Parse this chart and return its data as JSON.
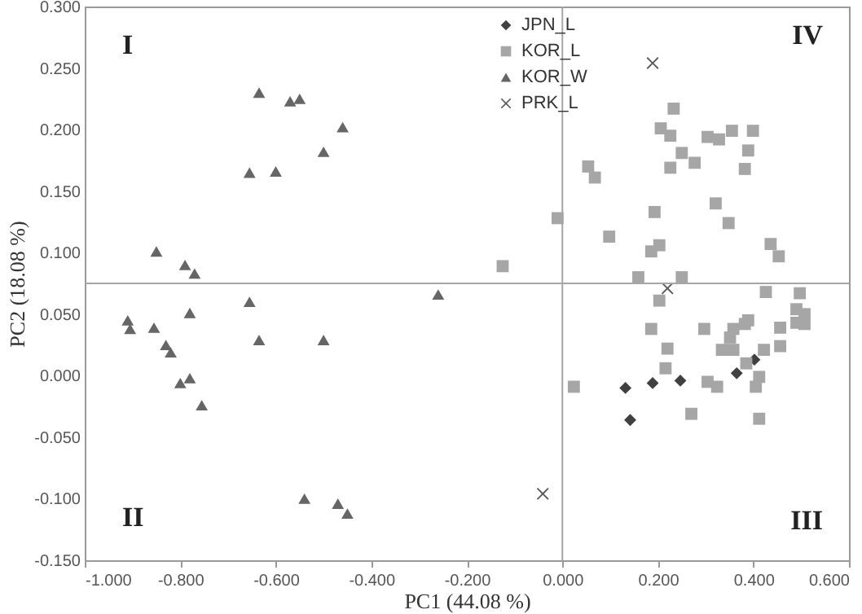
{
  "chart_data": {
    "type": "scatter",
    "xlabel": "PC1 (44.08 %)",
    "ylabel": "PC2 (18.08 %)",
    "xlim": [
      -1.0,
      0.6
    ],
    "ylim": [
      -0.15,
      0.3
    ],
    "xticks": [
      {
        "value": -1.0,
        "label": "-1.000"
      },
      {
        "value": -0.8,
        "label": "-0.800"
      },
      {
        "value": -0.6,
        "label": "-0.600"
      },
      {
        "value": -0.4,
        "label": "-0.400"
      },
      {
        "value": -0.2,
        "label": "-0.200"
      },
      {
        "value": 0,
        "label": "0.000"
      },
      {
        "value": 0.2,
        "label": "0.200"
      },
      {
        "value": 0.4,
        "label": "0.400"
      },
      {
        "value": 0.6,
        "label": "0.600"
      }
    ],
    "yticks": [
      {
        "value": -0.15,
        "label": "-0.150"
      },
      {
        "value": -0.1,
        "label": "-0.100"
      },
      {
        "value": -0.05,
        "label": "-0.050"
      },
      {
        "value": 0,
        "label": "0.000"
      },
      {
        "value": 0.05,
        "label": "0.050"
      },
      {
        "value": 0.1,
        "label": "0.100"
      },
      {
        "value": 0.15,
        "label": "0.150"
      },
      {
        "value": 0.2,
        "label": "0.200"
      },
      {
        "value": 0.25,
        "label": "0.250"
      },
      {
        "value": 0.3,
        "label": "0.300"
      }
    ],
    "grid": false,
    "legend": "top",
    "ref_lines": [
      {
        "axis": "x",
        "value": 0,
        "color": "#a6a6a6"
      },
      {
        "axis": "y",
        "value": 0.075,
        "color": "#a6a6a6"
      }
    ],
    "annotations": [
      "I",
      "II",
      "III",
      "IV"
    ],
    "series": [
      {
        "name": "JPN_L",
        "color": "#404040",
        "marker": "diamond",
        "x": [
          0.132,
          0.142,
          0.189,
          0.247,
          0.365,
          0.402
        ],
        "values": [
          -0.01,
          -0.036,
          -0.006,
          -0.004,
          0.002,
          0.013
        ]
      },
      {
        "name": "KOR_L",
        "color": "#a6a6a6",
        "marker": "square",
        "x": [
          -0.125,
          -0.01,
          0.054,
          0.068,
          0.098,
          0.159,
          0.193,
          0.186,
          0.203,
          0.203,
          0.206,
          0.226,
          0.233,
          0.226,
          0.25,
          0.277,
          0.25,
          0.304,
          0.328,
          0.355,
          0.399,
          0.389,
          0.382,
          0.321,
          0.348,
          0.436,
          0.453,
          0.426,
          0.497,
          0.49,
          0.507,
          0.49,
          0.507,
          0.456,
          0.456,
          0.422,
          0.389,
          0.382,
          0.358,
          0.351,
          0.334,
          0.358,
          0.385,
          0.412,
          0.405,
          0.412,
          0.27,
          0.304,
          0.324,
          0.297,
          0.22,
          0.216,
          0.186,
          0.024
        ],
        "values": [
          0.089,
          0.128,
          0.17,
          0.161,
          0.113,
          0.08,
          0.133,
          0.101,
          0.106,
          0.061,
          0.201,
          0.195,
          0.217,
          0.169,
          0.181,
          0.173,
          0.08,
          0.194,
          0.192,
          0.199,
          0.199,
          0.183,
          0.168,
          0.14,
          0.124,
          0.107,
          0.097,
          0.068,
          0.067,
          0.054,
          0.05,
          0.043,
          0.042,
          0.039,
          0.024,
          0.021,
          0.045,
          0.042,
          0.038,
          0.031,
          0.021,
          0.021,
          0.01,
          -0.001,
          -0.009,
          -0.035,
          -0.031,
          -0.005,
          -0.009,
          0.038,
          0.022,
          0.006,
          0.038,
          -0.009
        ]
      },
      {
        "name": "KOR_W",
        "color": "#666666",
        "marker": "triangle",
        "x": [
          -0.635,
          -0.57,
          -0.55,
          -0.46,
          -0.5,
          -0.655,
          -0.6,
          -0.85,
          -0.79,
          -0.77,
          -0.26,
          -0.655,
          -0.91,
          -0.905,
          -0.78,
          -0.855,
          -0.83,
          -0.82,
          -0.635,
          -0.5,
          -0.8,
          -0.78,
          -0.755,
          -0.54,
          -0.47,
          -0.45
        ],
        "values": [
          0.23,
          0.223,
          0.225,
          0.202,
          0.182,
          0.165,
          0.166,
          0.101,
          0.09,
          0.083,
          0.066,
          0.06,
          0.045,
          0.038,
          0.051,
          0.039,
          0.025,
          0.019,
          0.029,
          0.029,
          -0.006,
          -0.002,
          -0.024,
          -0.1,
          -0.104,
          -0.112
        ]
      },
      {
        "name": "PRK_L",
        "color": "#595959",
        "marker": "cross",
        "x": [
          0.189,
          0.22,
          -0.041
        ],
        "values": [
          0.254,
          0.071,
          -0.096
        ]
      }
    ]
  }
}
